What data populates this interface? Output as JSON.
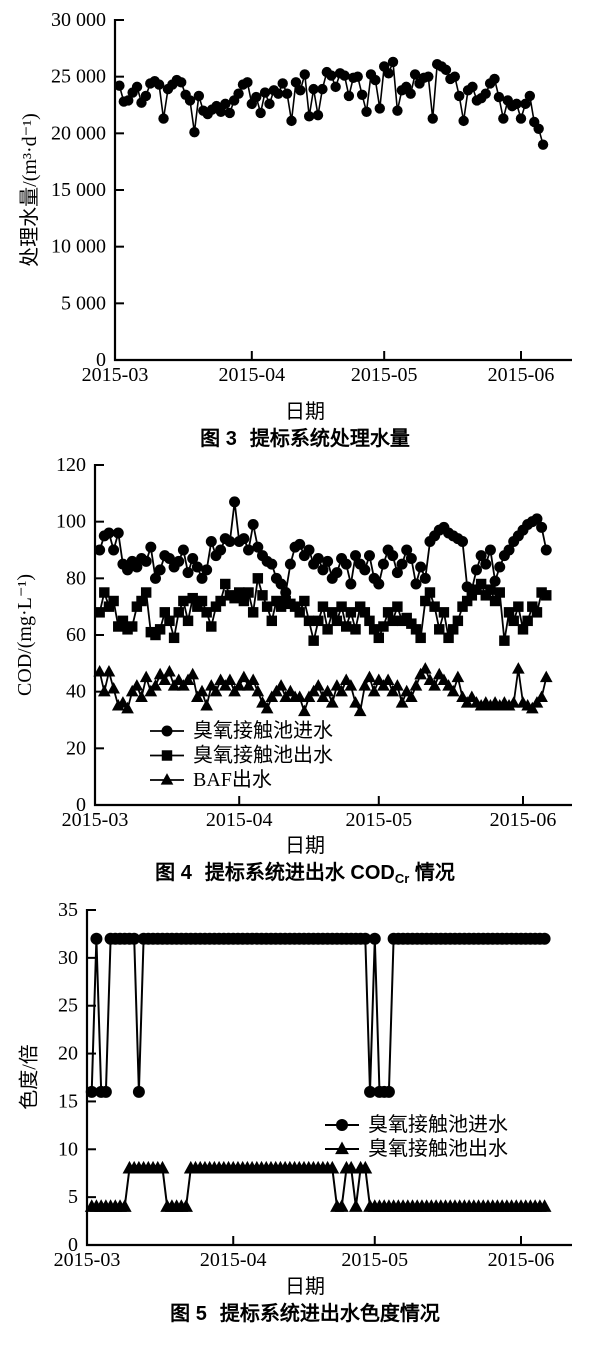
{
  "page": {
    "background": "#ffffff",
    "ink": "#000000"
  },
  "chart_data": [
    {
      "id": "fig3",
      "type": "line",
      "caption": {
        "fig": "图 3",
        "t1": "提标系统处理水量",
        "sub": "",
        "t2": ""
      },
      "xlabel": "日期",
      "ylabel": "处理水量/(m³·d⁻¹)",
      "x_tick_labels": [
        "2015-03",
        "2015-04",
        "2015-05",
        "2015-06"
      ],
      "x_tick_days": [
        0,
        31,
        61,
        92
      ],
      "x_axis_end_day": 103,
      "x_start_date": "2015-03-01",
      "ylim": [
        0,
        30000
      ],
      "y_ticks": [
        0,
        5000,
        10000,
        15000,
        20000,
        25000,
        30000
      ],
      "y_tick_labels": [
        "0",
        "5 000",
        "10 000",
        "15 000",
        "20 000",
        "25 000",
        "30 000"
      ],
      "grid": false,
      "legend": false,
      "legend_position": null,
      "series": [
        {
          "name": "处理水量",
          "marker": "circle",
          "start_day": 1,
          "values": [
            24200,
            22800,
            22900,
            23600,
            24100,
            22700,
            23300,
            24400,
            24600,
            24300,
            21300,
            23900,
            24300,
            24700,
            24500,
            23400,
            22900,
            20100,
            23300,
            22000,
            21700,
            22100,
            22400,
            21900,
            22600,
            21800,
            22900,
            23500,
            24300,
            24500,
            22600,
            23200,
            21800,
            23600,
            22600,
            23800,
            23500,
            24400,
            23500,
            21100,
            24500,
            23800,
            25200,
            21500,
            23900,
            21600,
            23900,
            25400,
            25100,
            24100,
            25300,
            25100,
            23300,
            24900,
            25000,
            23400,
            21900,
            25200,
            24700,
            22200,
            25900,
            25300,
            26300,
            22000,
            23800,
            24100,
            23500,
            25200,
            24400,
            24900,
            25000,
            21300,
            26100,
            25900,
            25600,
            24800,
            25000,
            23300,
            21100,
            23800,
            24100,
            22900,
            23100,
            23500,
            24400,
            24800,
            23200,
            21300,
            22900,
            22400,
            22600,
            21300,
            22600,
            23300,
            21000,
            20400,
            19000
          ]
        }
      ]
    },
    {
      "id": "fig4",
      "type": "line",
      "caption": {
        "fig": "图 4",
        "t1": "提标系统进出水 COD",
        "sub": "Cr",
        "t2": " 情况"
      },
      "xlabel": "日期",
      "ylabel": "COD/(mg·L⁻¹)",
      "x_tick_labels": [
        "2015-03",
        "2015-04",
        "2015-05",
        "2015-06"
      ],
      "x_tick_days": [
        0,
        31,
        61,
        92
      ],
      "x_axis_end_day": 103,
      "x_start_date": "2015-03-01",
      "ylim": [
        0,
        120
      ],
      "y_ticks": [
        0,
        20,
        40,
        60,
        80,
        100,
        120
      ],
      "y_tick_labels": [
        "0",
        "20",
        "40",
        "60",
        "80",
        "100",
        "120"
      ],
      "grid": false,
      "legend": true,
      "legend_position": "inside lower-left",
      "series": [
        {
          "name": "臭氧接触池进水",
          "marker": "circle",
          "start_day": 1,
          "values": [
            90,
            95,
            96,
            90,
            96,
            85,
            83,
            86,
            84,
            87,
            86,
            91,
            80,
            83,
            88,
            87,
            84,
            86,
            90,
            82,
            87,
            84,
            80,
            83,
            93,
            88,
            90,
            94,
            93,
            107,
            93,
            94,
            90,
            99,
            91,
            88,
            86,
            85,
            80,
            78,
            75,
            85,
            91,
            92,
            88,
            90,
            85,
            87,
            83,
            86,
            80,
            82,
            87,
            85,
            78,
            88,
            85,
            83,
            88,
            80,
            78,
            85,
            90,
            88,
            82,
            85,
            90,
            87,
            78,
            84,
            80,
            93,
            95,
            97,
            98,
            96,
            95,
            94,
            93,
            77,
            76,
            83,
            88,
            85,
            90,
            79,
            84,
            88,
            90,
            93,
            95,
            97,
            99,
            100,
            101,
            98,
            90
          ]
        },
        {
          "name": "臭氧接触池出水",
          "marker": "square",
          "start_day": 1,
          "values": [
            68,
            75,
            70,
            72,
            63,
            65,
            62,
            63,
            70,
            72,
            75,
            61,
            60,
            62,
            68,
            65,
            59,
            68,
            72,
            65,
            73,
            70,
            72,
            68,
            63,
            70,
            72,
            78,
            74,
            73,
            75,
            72,
            75,
            68,
            80,
            74,
            70,
            65,
            72,
            70,
            72,
            71,
            70,
            68,
            72,
            65,
            58,
            65,
            70,
            62,
            68,
            65,
            70,
            63,
            68,
            62,
            70,
            68,
            65,
            62,
            59,
            63,
            68,
            65,
            70,
            65,
            66,
            64,
            62,
            59,
            72,
            75,
            70,
            62,
            68,
            59,
            62,
            65,
            70,
            72,
            74,
            76,
            78,
            74,
            76,
            72,
            75,
            58,
            68,
            65,
            70,
            62,
            65,
            70,
            68,
            75,
            74
          ]
        },
        {
          "name": "BAF出水",
          "marker": "triangle",
          "start_day": 1,
          "values": [
            47,
            40,
            47,
            41,
            35,
            36,
            34,
            40,
            42,
            38,
            45,
            40,
            42,
            46,
            44,
            47,
            42,
            44,
            42,
            44,
            46,
            38,
            40,
            35,
            42,
            40,
            44,
            42,
            44,
            40,
            42,
            45,
            42,
            44,
            40,
            36,
            34,
            38,
            40,
            42,
            38,
            40,
            38,
            38,
            33,
            38,
            40,
            42,
            38,
            40,
            36,
            42,
            40,
            44,
            42,
            36,
            33,
            42,
            45,
            40,
            44,
            42,
            44,
            40,
            42,
            36,
            40,
            38,
            42,
            46,
            48,
            44,
            42,
            46,
            44,
            42,
            40,
            45,
            38,
            36,
            38,
            36,
            35,
            36,
            35,
            36,
            35,
            36,
            35,
            36,
            48,
            36,
            35,
            34,
            36,
            38,
            45
          ]
        }
      ]
    },
    {
      "id": "fig5",
      "type": "line",
      "caption": {
        "fig": "图 5",
        "t1": "提标系统进出水色度情况",
        "sub": "",
        "t2": ""
      },
      "xlabel": "日期",
      "ylabel": "色度/倍",
      "x_tick_labels": [
        "2015-03",
        "2015-04",
        "2015-05",
        "2015-06"
      ],
      "x_tick_days": [
        0,
        31,
        61,
        92
      ],
      "x_axis_end_day": 103,
      "x_start_date": "2015-03-01",
      "ylim": [
        0,
        35
      ],
      "y_ticks": [
        0,
        5,
        10,
        15,
        20,
        25,
        30,
        35
      ],
      "y_tick_labels": [
        "0",
        "5",
        "10",
        "15",
        "20",
        "25",
        "30",
        "35"
      ],
      "grid": false,
      "legend": true,
      "legend_position": "inside middle-right",
      "series": [
        {
          "name": "臭氧接触池进水",
          "marker": "circle",
          "start_day": 1,
          "values": [
            16,
            32,
            16,
            16,
            32,
            32,
            32,
            32,
            32,
            32,
            16,
            32,
            32,
            32,
            32,
            32,
            32,
            32,
            32,
            32,
            32,
            32,
            32,
            32,
            32,
            32,
            32,
            32,
            32,
            32,
            32,
            32,
            32,
            32,
            32,
            32,
            32,
            32,
            32,
            32,
            32,
            32,
            32,
            32,
            32,
            32,
            32,
            32,
            32,
            32,
            32,
            32,
            32,
            32,
            32,
            32,
            32,
            32,
            32,
            16,
            32,
            16,
            16,
            16,
            32,
            32,
            32,
            32,
            32,
            32,
            32,
            32,
            32,
            32,
            32,
            32,
            32,
            32,
            32,
            32,
            32,
            32,
            32,
            32,
            32,
            32,
            32,
            32,
            32,
            32,
            32,
            32,
            32,
            32,
            32,
            32,
            32
          ]
        },
        {
          "name": "臭氧接触池出水",
          "marker": "triangle",
          "start_day": 1,
          "values": [
            4,
            4,
            4,
            4,
            4,
            4,
            4,
            4,
            8,
            8,
            8,
            8,
            8,
            8,
            8,
            8,
            4,
            4,
            4,
            4,
            4,
            8,
            8,
            8,
            8,
            8,
            8,
            8,
            8,
            8,
            8,
            8,
            8,
            8,
            8,
            8,
            8,
            8,
            8,
            8,
            8,
            8,
            8,
            8,
            8,
            8,
            8,
            8,
            8,
            8,
            8,
            8,
            4,
            4,
            8,
            8,
            4,
            8,
            8,
            4,
            4,
            4,
            4,
            4,
            4,
            4,
            4,
            4,
            4,
            4,
            4,
            4,
            4,
            4,
            4,
            4,
            4,
            4,
            4,
            4,
            4,
            4,
            4,
            4,
            4,
            4,
            4,
            4,
            4,
            4,
            4,
            4,
            4,
            4,
            4,
            4,
            4
          ]
        }
      ]
    }
  ]
}
